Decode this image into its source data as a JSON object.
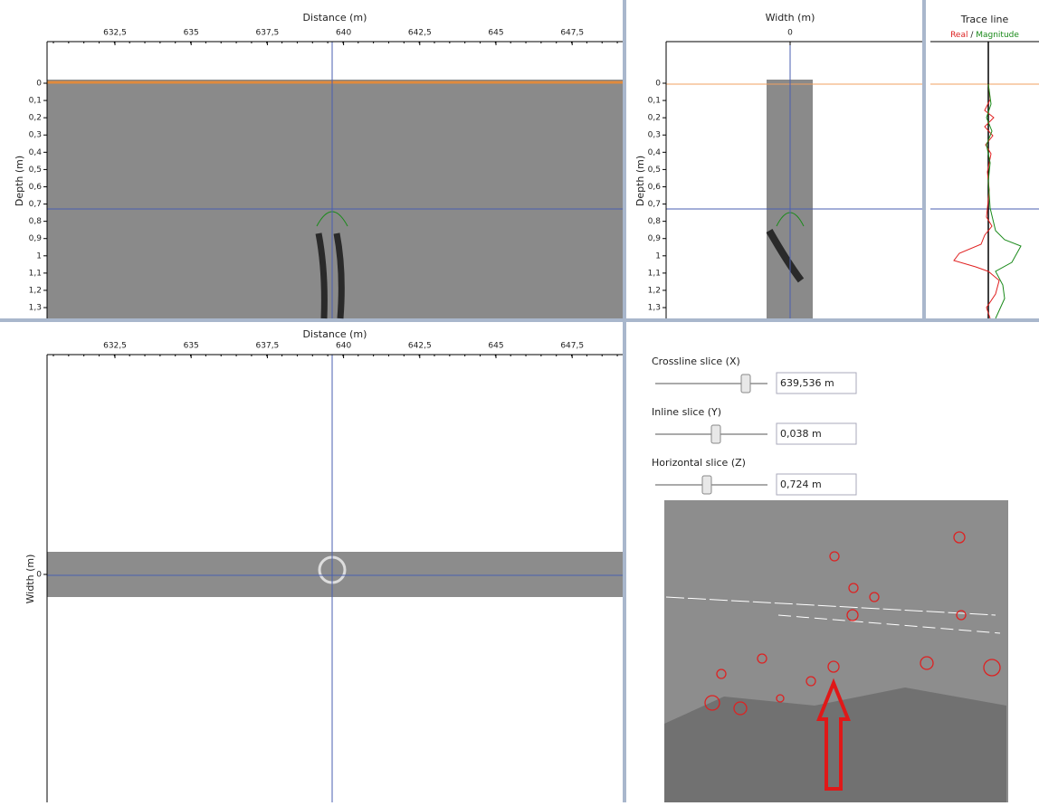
{
  "radargram": {
    "x_label": "Distance (m)",
    "x_ticks": [
      "632,5",
      "635",
      "637,5",
      "640",
      "642,5",
      "645",
      "647,5"
    ],
    "y_label": "Depth (m)",
    "y_ticks": [
      "0",
      "0,1",
      "0,2",
      "0,3",
      "0,4",
      "0,5",
      "0,6",
      "0,7",
      "0,8",
      "0,9",
      "1",
      "1,1",
      "1,2",
      "1,3"
    ]
  },
  "width_panel": {
    "x_label": "Width (m)",
    "x_ticks": [
      "0"
    ],
    "y_label": "Depth (m)",
    "y_ticks": [
      "0",
      "0,1",
      "0,2",
      "0,3",
      "0,4",
      "0,5",
      "0,6",
      "0,7",
      "0,8",
      "0,9",
      "1",
      "1,1",
      "1,2",
      "1,3"
    ]
  },
  "trace_panel": {
    "title": "Trace line",
    "legend_real": "Real",
    "legend_separator": " / ",
    "legend_magnitude": "Magnitude"
  },
  "plan_view": {
    "x_label": "Distance (m)",
    "x_ticks": [
      "632,5",
      "635",
      "637,5",
      "640",
      "642,5",
      "645",
      "647,5"
    ],
    "y_label": "Width (m)",
    "y_ticks": [
      "0"
    ]
  },
  "controls": [
    {
      "label": "Crossline slice (X)",
      "value": "639,536 m"
    },
    {
      "label": "Inline slice (Y)",
      "value": "0,038 m"
    },
    {
      "label": "Horizontal slice (Z)",
      "value": "0,724 m"
    }
  ]
}
